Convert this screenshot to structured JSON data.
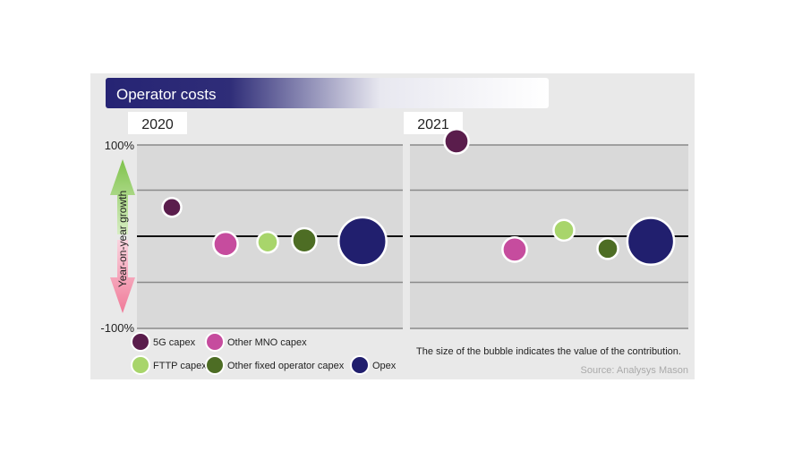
{
  "chart_data": {
    "type": "scatter",
    "title": "Operator costs",
    "ylabel": "Year-on-year growth",
    "ylim": [
      -100,
      100
    ],
    "yticks": [
      "100%",
      "-100%"
    ],
    "panels": [
      {
        "label": "2020",
        "points": [
          {
            "series": "5G capex",
            "x": 1,
            "y": 32,
            "size": 1
          },
          {
            "series": "Other MNO capex",
            "x": 2,
            "y": -8,
            "size": 2
          },
          {
            "series": "FTTP capex",
            "x": 3,
            "y": -6,
            "size": 1.3
          },
          {
            "series": "Other fixed operator capex",
            "x": 4,
            "y": -4,
            "size": 2
          },
          {
            "series": "Opex",
            "x": 5,
            "y": -5,
            "size": 10
          }
        ]
      },
      {
        "label": "2021",
        "points": [
          {
            "series": "5G capex",
            "x": 1,
            "y": 104,
            "size": 2
          },
          {
            "series": "Other MNO capex",
            "x": 2,
            "y": -14,
            "size": 2
          },
          {
            "series": "FTTP capex",
            "x": 3,
            "y": 7,
            "size": 1.3
          },
          {
            "series": "Other fixed operator capex",
            "x": 4,
            "y": -13,
            "size": 1.3
          },
          {
            "series": "Opex",
            "x": 5,
            "y": -5,
            "size": 9.5
          }
        ]
      }
    ],
    "legend": [
      {
        "name": "5G capex",
        "color": "#5a1d4c"
      },
      {
        "name": "Other MNO capex",
        "color": "#c64c9e"
      },
      {
        "name": "FTTP capex",
        "color": "#a8d56b"
      },
      {
        "name": "Other fixed operator capex",
        "color": "#4d6d24"
      },
      {
        "name": "Opex",
        "color": "#211f6e"
      }
    ],
    "note": "The size of the bubble indicates the value of the contribution.",
    "source": "Source: Analysys Mason"
  }
}
